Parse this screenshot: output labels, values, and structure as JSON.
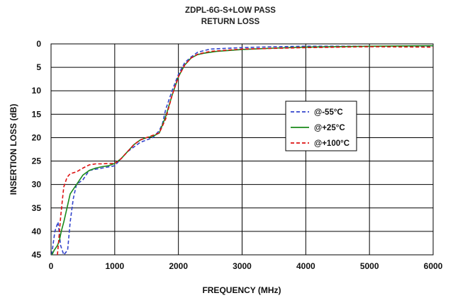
{
  "chart_data": {
    "type": "line",
    "title": "ZDPL-6G-S+LOW PASS",
    "subtitle": "RETURN LOSS",
    "xlabel": "FREQUENCY (MHz)",
    "ylabel": "INSERTION LOSS (dB)",
    "xlim": [
      0,
      6000
    ],
    "ylim": [
      0,
      45
    ],
    "y_inverted": true,
    "x_ticks": [
      "0",
      "1000",
      "2000",
      "3000",
      "4000",
      "5000",
      "6000"
    ],
    "y_ticks": [
      "0",
      "5",
      "10",
      "15",
      "20",
      "25",
      "30",
      "35",
      "40",
      "45"
    ],
    "grid": true,
    "legend_position": "right-middle",
    "series": [
      {
        "name": "@-55°C",
        "color": "#3344cc",
        "style": "dashed",
        "x": [
          10,
          60,
          110,
          150,
          200,
          260,
          300,
          330,
          350,
          400,
          500,
          600,
          800,
          1000,
          1100,
          1200,
          1400,
          1600,
          1700,
          1750,
          1800,
          1900,
          2000,
          2100,
          2200,
          2300,
          2500,
          3000,
          3500,
          4000,
          5000,
          6000
        ],
        "values": [
          45,
          40,
          38,
          43,
          45,
          44,
          38,
          35,
          33,
          30,
          29,
          27,
          26.5,
          26,
          24.5,
          23,
          21,
          20,
          18.5,
          17,
          14,
          10,
          6.5,
          4,
          2.8,
          1.8,
          1.1,
          0.8,
          0.6,
          0.5,
          0.5,
          0.5
        ]
      },
      {
        "name": "@+25°C",
        "color": "#1a8a1a",
        "style": "solid",
        "x": [
          15,
          50,
          100,
          130,
          160,
          200,
          250,
          300,
          400,
          500,
          600,
          700,
          800,
          900,
          1000,
          1100,
          1200,
          1300,
          1400,
          1500,
          1600,
          1700,
          1800,
          1900,
          2000,
          2100,
          2200,
          2300,
          2400,
          2600,
          3000,
          3500,
          4000,
          5000,
          6000
        ],
        "values": [
          45,
          44,
          43,
          42,
          40,
          38,
          35,
          32,
          30,
          28,
          27,
          26.5,
          26.2,
          26,
          25.5,
          24.5,
          23,
          21.5,
          20.5,
          20,
          19.7,
          19,
          15.5,
          11,
          7,
          4.5,
          3,
          2.3,
          2,
          1.6,
          1.2,
          0.9,
          0.7,
          0.5,
          0.4
        ]
      },
      {
        "name": "@+100°C",
        "color": "#dd1111",
        "style": "dashed",
        "x": [
          100,
          120,
          150,
          180,
          200,
          250,
          300,
          400,
          500,
          600,
          700,
          800,
          900,
          1000,
          1100,
          1200,
          1300,
          1400,
          1500,
          1600,
          1700,
          1800,
          1900,
          2000,
          2100,
          2200,
          2300,
          2500,
          3000,
          4000,
          5000,
          6000
        ],
        "values": [
          45,
          42,
          37,
          33,
          30.5,
          28.5,
          27.7,
          27.3,
          26.5,
          25.8,
          25.6,
          25.6,
          25.5,
          25.5,
          24.5,
          23,
          21.5,
          20.5,
          20,
          19.5,
          19,
          16,
          11,
          7,
          4.5,
          3,
          2.2,
          1.6,
          1.1,
          0.8,
          0.6,
          0.7
        ]
      }
    ]
  }
}
